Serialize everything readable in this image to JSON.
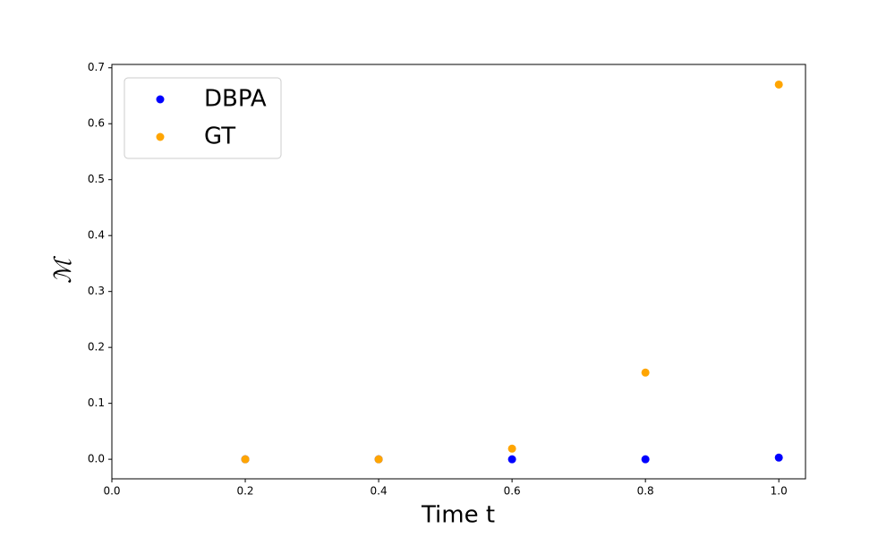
{
  "chart_data": {
    "type": "scatter",
    "xlabel": "Time t",
    "ylabel": "ℳ",
    "x": [
      0.2,
      0.4,
      0.6,
      0.8,
      1.0
    ],
    "series": [
      {
        "name": "DBPA",
        "color": "#0000ff",
        "values": [
          0,
          0,
          0,
          0,
          0.003
        ]
      },
      {
        "name": "GT",
        "color": "#ffa500",
        "values": [
          0,
          0,
          0.019,
          0.155,
          0.67
        ]
      }
    ],
    "xlim": [
      0,
      1.04
    ],
    "ylim": [
      -0.035,
      0.706
    ],
    "xticks": [
      {
        "value": 0,
        "label": "0.0"
      },
      0.2,
      0.4,
      0.6,
      0.8,
      {
        "value": 1,
        "label": "1.0"
      }
    ],
    "yticks": [
      {
        "value": 0,
        "label": "0.0"
      },
      0.1,
      0.2,
      0.3,
      0.4,
      0.5,
      0.6,
      0.7
    ],
    "legend": "upper left"
  }
}
